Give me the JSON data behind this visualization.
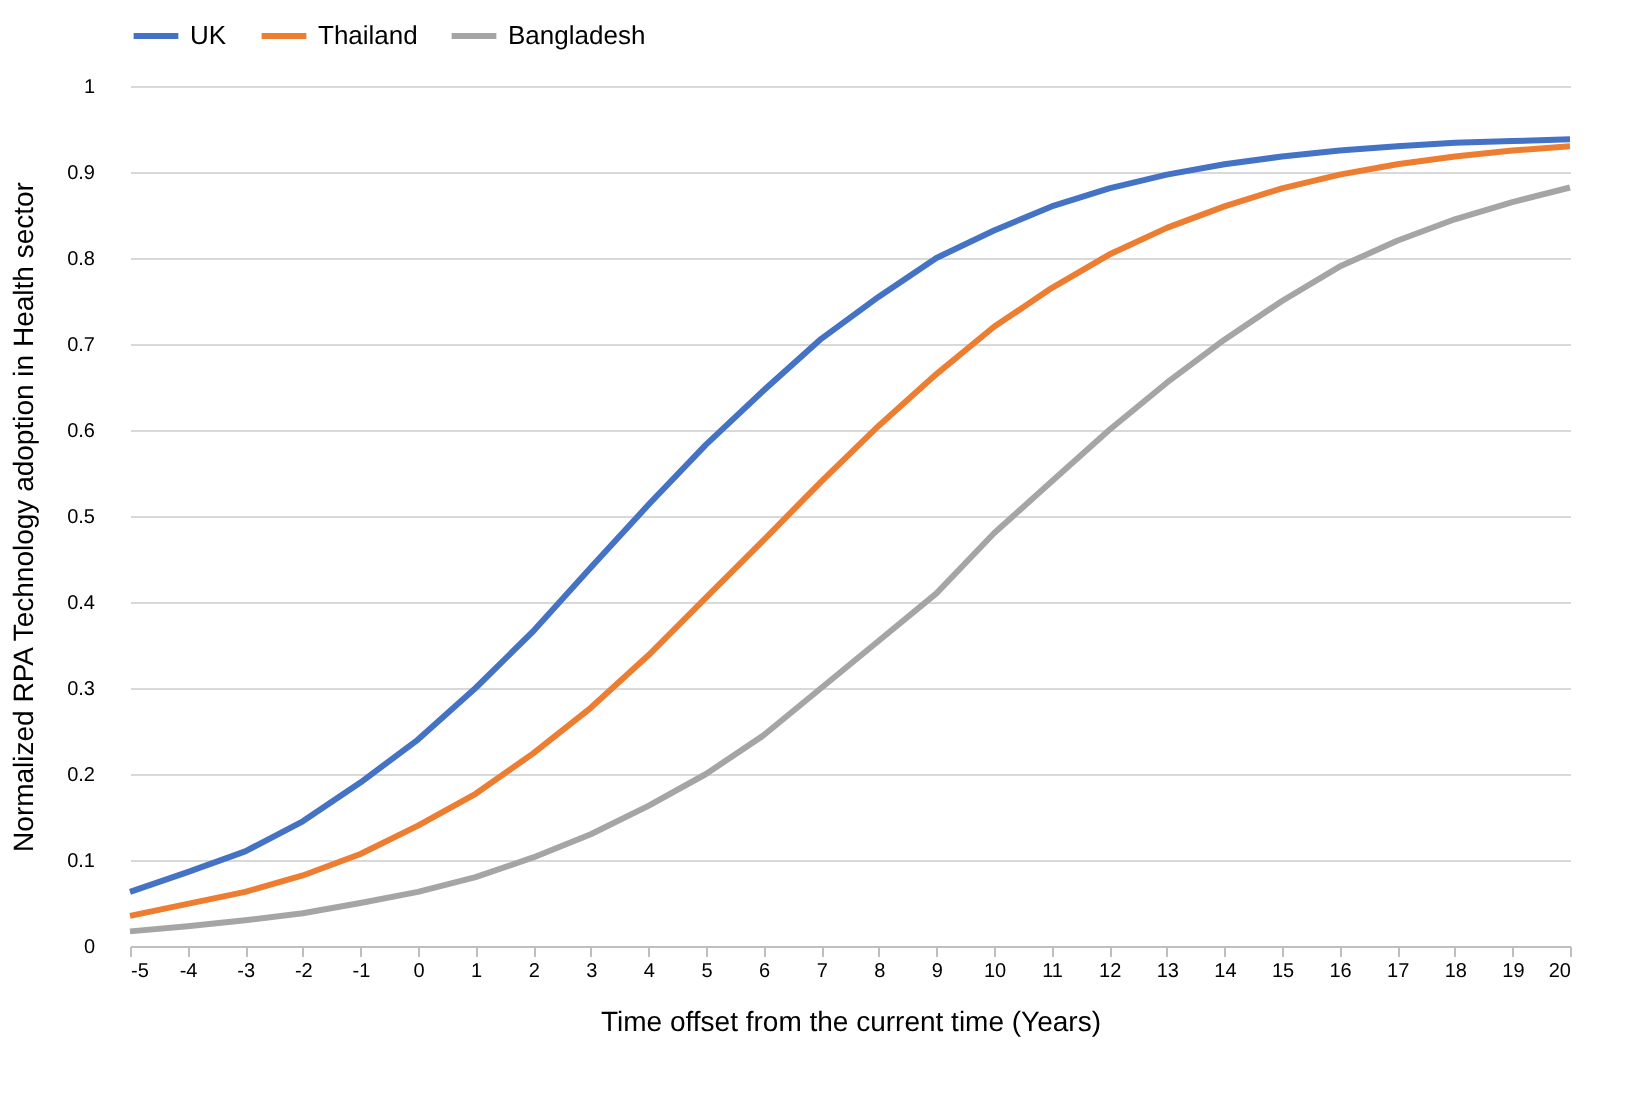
{
  "chart_data": {
    "type": "line",
    "xlabel": "Time offset from the current time (Years)",
    "ylabel": "Normalized RPA Technology adoption in Health sector",
    "x": [
      -5,
      -4,
      -3,
      -2,
      -1,
      0,
      1,
      2,
      3,
      4,
      5,
      6,
      7,
      8,
      9,
      10,
      11,
      12,
      13,
      14,
      15,
      16,
      17,
      18,
      19,
      20
    ],
    "series": [
      {
        "name": "UK",
        "color": "#4472c4",
        "values": [
          0.063,
          0.086,
          0.11,
          0.145,
          0.19,
          0.24,
          0.3,
          0.366,
          0.44,
          0.513,
          0.583,
          0.646,
          0.706,
          0.755,
          0.8,
          0.832,
          0.86,
          0.881,
          0.897,
          0.909,
          0.918,
          0.925,
          0.93,
          0.934,
          0.936,
          0.938
        ]
      },
      {
        "name": "Thailand",
        "color": "#ed7d31",
        "values": [
          0.035,
          0.049,
          0.063,
          0.082,
          0.107,
          0.14,
          0.177,
          0.224,
          0.277,
          0.338,
          0.405,
          0.472,
          0.54,
          0.605,
          0.665,
          0.72,
          0.765,
          0.804,
          0.835,
          0.86,
          0.881,
          0.897,
          0.909,
          0.918,
          0.925,
          0.93
        ]
      },
      {
        "name": "Bangladesh",
        "color": "#a5a5a5",
        "values": [
          0.017,
          0.023,
          0.03,
          0.038,
          0.05,
          0.063,
          0.08,
          0.103,
          0.13,
          0.163,
          0.2,
          0.245,
          0.3,
          0.355,
          0.41,
          0.48,
          0.54,
          0.6,
          0.655,
          0.705,
          0.75,
          0.79,
          0.82,
          0.845,
          0.865,
          0.882
        ]
      }
    ],
    "xlim": [
      -5,
      20
    ],
    "xticks": [
      -5,
      -4,
      -3,
      -2,
      -1,
      0,
      1,
      2,
      3,
      4,
      5,
      6,
      7,
      8,
      9,
      10,
      11,
      12,
      13,
      14,
      15,
      16,
      17,
      18,
      19,
      20
    ],
    "ylim": [
      0,
      1
    ],
    "yticks": [
      0,
      0.1,
      0.2,
      0.3,
      0.4,
      0.5,
      0.6,
      0.7,
      0.8,
      0.9,
      1
    ],
    "grid": "y",
    "legend": "top",
    "marker": "none",
    "line_style": "solid"
  }
}
